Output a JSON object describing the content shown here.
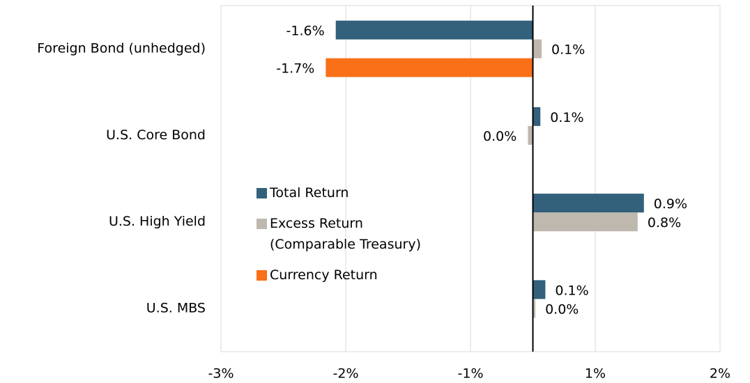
{
  "chart_data": {
    "type": "hbar",
    "categories": [
      "Foreign Bond (unhedged)",
      "U.S. Core Bond",
      "U.S. High Yield",
      "U.S. MBS"
    ],
    "series": [
      {
        "name": "Total Return",
        "color": "#33607a",
        "values": [
          -1.58,
          0.06,
          0.89,
          0.1
        ],
        "value_labels": [
          "-1.6%",
          "0.1%",
          "0.9%",
          "0.1%"
        ]
      },
      {
        "name": "Excess Return (Comparable Treasury)",
        "color": "#bfb8ae",
        "values": [
          0.07,
          -0.04,
          0.84,
          0.02
        ],
        "value_labels": [
          "0.1%",
          "0.0%",
          "0.8%",
          "0.0%"
        ]
      },
      {
        "name": "Currency Return",
        "color": "#f97019",
        "values": [
          -1.66,
          null,
          null,
          null
        ],
        "value_labels": [
          "-1.7%",
          null,
          null,
          null
        ]
      }
    ],
    "xlim": [
      -2.5,
      1.5
    ],
    "xticks": [
      {
        "value": -2.5,
        "label": "-3%"
      },
      {
        "value": -1.5,
        "label": "-2%"
      },
      {
        "value": -0.5,
        "label": "-1%"
      },
      {
        "value": 0.5,
        "label": "1%"
      },
      {
        "value": 1.5,
        "label": "2%"
      }
    ],
    "grid": true
  }
}
